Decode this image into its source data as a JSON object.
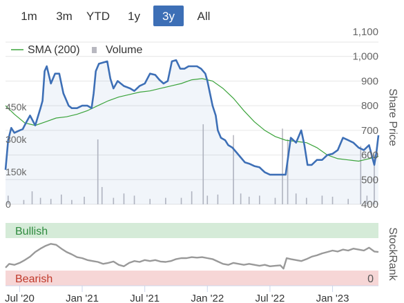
{
  "range_buttons": [
    {
      "label": "1m",
      "active": false
    },
    {
      "label": "3m",
      "active": false
    },
    {
      "label": "YTD",
      "active": false
    },
    {
      "label": "1y",
      "active": false
    },
    {
      "label": "3y",
      "active": true
    },
    {
      "label": "All",
      "active": false
    }
  ],
  "legend": {
    "sma_label": "SMA (200)",
    "volume_label": "Volume"
  },
  "colors": {
    "price": "#3d6fb6",
    "sma": "#3aa33a",
    "volume": "#b8b8c0",
    "stockrank": "#999999",
    "bullish_bg": "#d5ebd8",
    "bullish_text": "#2e8b3e",
    "bearish_bg": "#f6d6d6",
    "bearish_text": "#c0392b",
    "active_button": "#3d6fb6"
  },
  "chart_data": [
    {
      "type": "line",
      "ylabel": "Share Price",
      "yticks": [
        "1,100",
        "1,000",
        "900",
        "800",
        "700",
        "600",
        "500",
        "400"
      ],
      "ylim": [
        400,
        1100
      ],
      "volume_ticks": [
        "450k",
        "300k",
        "150k",
        "0"
      ],
      "volume_ylim": [
        0,
        600000
      ],
      "xticks": [
        "Jul '20",
        "Jan '21",
        "Jul '21",
        "Jan '22",
        "Jul '22",
        "Jan '23"
      ],
      "x_months": [
        0,
        6,
        12,
        18,
        24,
        30
      ],
      "x_range_months": [
        -1.35,
        34.4
      ],
      "series": [
        {
          "name": "Share Price",
          "points": [
            [
              -1.35,
              540
            ],
            [
              -1.1,
              660
            ],
            [
              -0.8,
              710
            ],
            [
              -0.5,
              690
            ],
            [
              0,
              700
            ],
            [
              0.3,
              705
            ],
            [
              0.6,
              730
            ],
            [
              1.0,
              760
            ],
            [
              1.5,
              720
            ],
            [
              2.0,
              790
            ],
            [
              2.2,
              820
            ],
            [
              2.4,
              940
            ],
            [
              2.6,
              960
            ],
            [
              3.0,
              890
            ],
            [
              3.4,
              930
            ],
            [
              3.8,
              930
            ],
            [
              4.2,
              850
            ],
            [
              4.5,
              820
            ],
            [
              4.7,
              800
            ],
            [
              5.0,
              790
            ],
            [
              5.5,
              790
            ],
            [
              6.0,
              800
            ],
            [
              6.5,
              800
            ],
            [
              6.9,
              790
            ],
            [
              7.1,
              850
            ],
            [
              7.3,
              940
            ],
            [
              7.6,
              970
            ],
            [
              8.0,
              975
            ],
            [
              8.4,
              980
            ],
            [
              8.7,
              910
            ],
            [
              9.0,
              870
            ],
            [
              9.4,
              900
            ],
            [
              10.0,
              880
            ],
            [
              10.6,
              870
            ],
            [
              11.0,
              860
            ],
            [
              11.5,
              880
            ],
            [
              12.0,
              890
            ],
            [
              12.5,
              930
            ],
            [
              13.0,
              925
            ],
            [
              13.4,
              905
            ],
            [
              13.8,
              890
            ],
            [
              14.2,
              900
            ],
            [
              14.6,
              980
            ],
            [
              15.0,
              985
            ],
            [
              15.4,
              950
            ],
            [
              15.8,
              950
            ],
            [
              16.2,
              960
            ],
            [
              16.6,
              960
            ],
            [
              17.0,
              960
            ],
            [
              17.4,
              950
            ],
            [
              17.8,
              930
            ],
            [
              18.0,
              900
            ],
            [
              18.2,
              860
            ],
            [
              18.5,
              800
            ],
            [
              18.8,
              760
            ],
            [
              19.0,
              700
            ],
            [
              19.3,
              670
            ],
            [
              19.7,
              660
            ],
            [
              20.0,
              640
            ],
            [
              20.4,
              630
            ],
            [
              20.8,
              610
            ],
            [
              21.2,
              590
            ],
            [
              21.6,
              570
            ],
            [
              22.0,
              565
            ],
            [
              22.5,
              555
            ],
            [
              23.0,
              550
            ],
            [
              23.5,
              530
            ],
            [
              24.0,
              520
            ],
            [
              24.5,
              520
            ],
            [
              25.0,
              520
            ],
            [
              25.5,
              520
            ],
            [
              26.0,
              670
            ],
            [
              26.5,
              650
            ],
            [
              27.0,
              700
            ],
            [
              27.3,
              640
            ],
            [
              27.6,
              560
            ],
            [
              28.0,
              560
            ],
            [
              28.5,
              580
            ],
            [
              29.0,
              580
            ],
            [
              29.5,
              600
            ],
            [
              30.0,
              605
            ],
            [
              30.5,
              620
            ],
            [
              31.0,
              670
            ],
            [
              31.5,
              660
            ],
            [
              32.0,
              650
            ],
            [
              32.5,
              630
            ],
            [
              33.0,
              620
            ],
            [
              33.5,
              640
            ],
            [
              34.0,
              560
            ],
            [
              34.2,
              610
            ],
            [
              34.4,
              680
            ]
          ]
        },
        {
          "name": "SMA (200)",
          "points": [
            [
              -1.35,
              800
            ],
            [
              -0.5,
              765
            ],
            [
              0.5,
              730
            ],
            [
              1.5,
              720
            ],
            [
              2.5,
              735
            ],
            [
              3.5,
              750
            ],
            [
              4.5,
              755
            ],
            [
              5.5,
              765
            ],
            [
              6.5,
              780
            ],
            [
              7.5,
              800
            ],
            [
              8.5,
              820
            ],
            [
              9.5,
              835
            ],
            [
              10.5,
              845
            ],
            [
              11.5,
              855
            ],
            [
              12.5,
              860
            ],
            [
              13.5,
              870
            ],
            [
              14.5,
              880
            ],
            [
              15.5,
              890
            ],
            [
              16.5,
              905
            ],
            [
              17.5,
              910
            ],
            [
              18.5,
              900
            ],
            [
              19.5,
              870
            ],
            [
              20.5,
              830
            ],
            [
              21.5,
              780
            ],
            [
              22.5,
              735
            ],
            [
              23.5,
              700
            ],
            [
              24.5,
              675
            ],
            [
              25.5,
              660
            ],
            [
              26.5,
              655
            ],
            [
              27.5,
              650
            ],
            [
              28.5,
              630
            ],
            [
              29.5,
              600
            ],
            [
              30.5,
              585
            ],
            [
              31.5,
              580
            ],
            [
              32.5,
              575
            ],
            [
              33.5,
              585
            ],
            [
              34.4,
              595
            ]
          ]
        },
        {
          "name": "Volume",
          "points": [
            [
              -1.1,
              40000
            ],
            [
              0.4,
              20000
            ],
            [
              1.2,
              60000
            ],
            [
              2.0,
              30000
            ],
            [
              3.0,
              25000
            ],
            [
              4.0,
              45000
            ],
            [
              5.0,
              20000
            ],
            [
              6.2,
              35000
            ],
            [
              7.5,
              300000
            ],
            [
              7.9,
              80000
            ],
            [
              9.0,
              30000
            ],
            [
              10.0,
              50000
            ],
            [
              11.0,
              40000
            ],
            [
              12.5,
              25000
            ],
            [
              14.0,
              30000
            ],
            [
              15.5,
              30000
            ],
            [
              16.5,
              60000
            ],
            [
              17.6,
              370000
            ],
            [
              18.0,
              40000
            ],
            [
              19.0,
              45000
            ],
            [
              20.5,
              320000
            ],
            [
              21.2,
              50000
            ],
            [
              22.0,
              35000
            ],
            [
              23.0,
              40000
            ],
            [
              24.5,
              30000
            ],
            [
              25.2,
              350000
            ],
            [
              25.7,
              300000
            ],
            [
              26.5,
              50000
            ],
            [
              27.5,
              30000
            ],
            [
              29.0,
              40000
            ],
            [
              30.0,
              35000
            ],
            [
              31.5,
              25000
            ],
            [
              32.7,
              270000
            ],
            [
              33.3,
              40000
            ],
            [
              34.0,
              230000
            ]
          ]
        }
      ]
    },
    {
      "type": "line",
      "ylabel": "StockRank",
      "bands": [
        {
          "label": "Bullish",
          "value": ""
        },
        {
          "label": "Bearish",
          "value": "0"
        }
      ],
      "ylim": [
        0,
        100
      ],
      "series": [
        {
          "name": "StockRank",
          "points": [
            [
              -1.35,
              22
            ],
            [
              -1.0,
              30
            ],
            [
              -0.5,
              28
            ],
            [
              0.0,
              32
            ],
            [
              0.5,
              38
            ],
            [
              1.0,
              45
            ],
            [
              1.5,
              55
            ],
            [
              2.0,
              62
            ],
            [
              2.5,
              68
            ],
            [
              3.0,
              72
            ],
            [
              3.5,
              70
            ],
            [
              4.0,
              62
            ],
            [
              4.5,
              55
            ],
            [
              5.0,
              50
            ],
            [
              5.5,
              44
            ],
            [
              6.0,
              42
            ],
            [
              6.5,
              38
            ],
            [
              7.0,
              36
            ],
            [
              7.5,
              34
            ],
            [
              8.0,
              30
            ],
            [
              8.5,
              32
            ],
            [
              9.0,
              35
            ],
            [
              9.5,
              28
            ],
            [
              10.0,
              25
            ],
            [
              10.5,
              32
            ],
            [
              11.0,
              36
            ],
            [
              11.5,
              34
            ],
            [
              12.0,
              38
            ],
            [
              12.5,
              36
            ],
            [
              13.0,
              38
            ],
            [
              13.5,
              35
            ],
            [
              14.0,
              34
            ],
            [
              14.5,
              36
            ],
            [
              15.0,
              40
            ],
            [
              15.5,
              42
            ],
            [
              16.0,
              42
            ],
            [
              16.5,
              44
            ],
            [
              17.0,
              43
            ],
            [
              17.5,
              44
            ],
            [
              18.0,
              42
            ],
            [
              18.5,
              40
            ],
            [
              19.0,
              35
            ],
            [
              19.5,
              30
            ],
            [
              20.0,
              28
            ],
            [
              20.5,
              32
            ],
            [
              21.0,
              30
            ],
            [
              21.5,
              28
            ],
            [
              22.0,
              30
            ],
            [
              22.5,
              28
            ],
            [
              23.0,
              26
            ],
            [
              23.5,
              28
            ],
            [
              24.0,
              25
            ],
            [
              24.5,
              26
            ],
            [
              25.0,
              27
            ],
            [
              25.3,
              20
            ],
            [
              25.6,
              42
            ],
            [
              26.0,
              40
            ],
            [
              26.5,
              38
            ],
            [
              27.0,
              36
            ],
            [
              27.5,
              40
            ],
            [
              28.0,
              45
            ],
            [
              28.5,
              48
            ],
            [
              29.0,
              52
            ],
            [
              29.5,
              55
            ],
            [
              30.0,
              58
            ],
            [
              30.5,
              56
            ],
            [
              31.0,
              60
            ],
            [
              31.5,
              58
            ],
            [
              32.0,
              62
            ],
            [
              32.5,
              60
            ],
            [
              33.0,
              58
            ],
            [
              33.5,
              64
            ],
            [
              34.0,
              56
            ],
            [
              34.4,
              55
            ]
          ]
        }
      ]
    }
  ]
}
